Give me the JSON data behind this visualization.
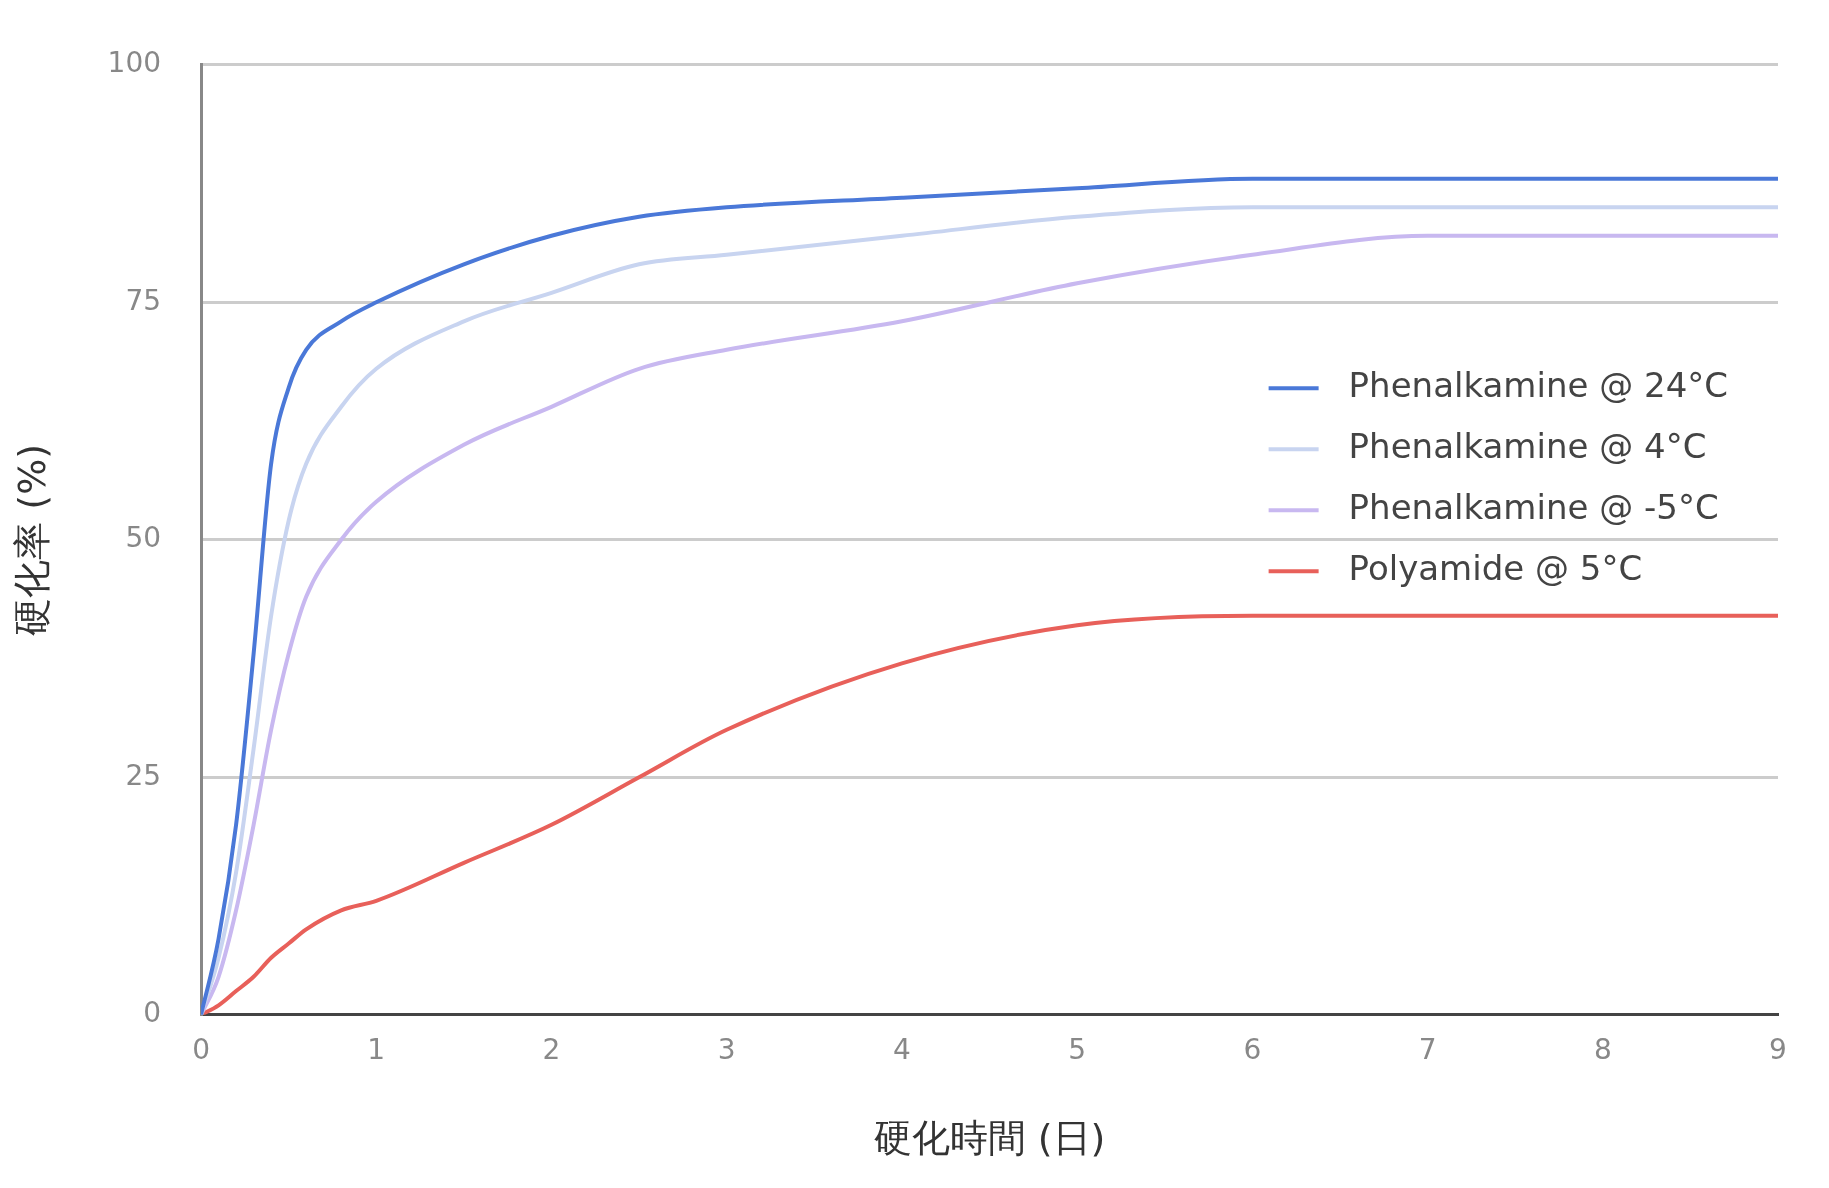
{
  "chart_data": {
    "type": "line",
    "xlabel": "硬化時間 (日)",
    "ylabel": "硬化率 (%)",
    "x": [
      0,
      0.1,
      0.2,
      0.3,
      0.4,
      0.5,
      0.6,
      0.8,
      1,
      1.5,
      2,
      2.5,
      3,
      4,
      5,
      6,
      7,
      8,
      9
    ],
    "series": [
      {
        "name": "Phenalkamine @ 24°C",
        "color": "#4a78d8",
        "values": [
          0,
          8,
          20,
          38,
          58,
          66,
          70,
          73,
          75,
          79,
          82,
          84,
          85,
          86,
          87,
          88,
          88,
          88,
          88
        ]
      },
      {
        "name": "Phenalkamine @ 4°C",
        "color": "#c8d4f0",
        "values": [
          0,
          6,
          15,
          28,
          42,
          52,
          58,
          64,
          68,
          73,
          76,
          79,
          80,
          82,
          84,
          85,
          85,
          85,
          85
        ]
      },
      {
        "name": "Phenalkamine @ -5°C",
        "color": "#c8b8f0",
        "values": [
          0,
          4,
          11,
          20,
          30,
          38,
          44,
          50,
          54,
          60,
          64,
          68,
          70,
          73,
          77,
          80,
          82,
          82,
          82
        ]
      },
      {
        "name": "Polyamide @ 5°C",
        "color": "#e8605a",
        "values": [
          0,
          1,
          2.5,
          4,
          6,
          7.5,
          9,
          11,
          12,
          16,
          20,
          25,
          30,
          37,
          41,
          42,
          42,
          42,
          42
        ]
      }
    ],
    "xlim": [
      0,
      9
    ],
    "xticks": [
      0,
      1,
      2,
      3,
      4,
      5,
      6,
      7,
      8,
      9
    ],
    "ylim": [
      0,
      100
    ],
    "yticks": [
      0,
      25,
      50,
      75,
      100
    ],
    "grid": "y",
    "legend": "right",
    "marker": "none",
    "line_style": "solid"
  }
}
